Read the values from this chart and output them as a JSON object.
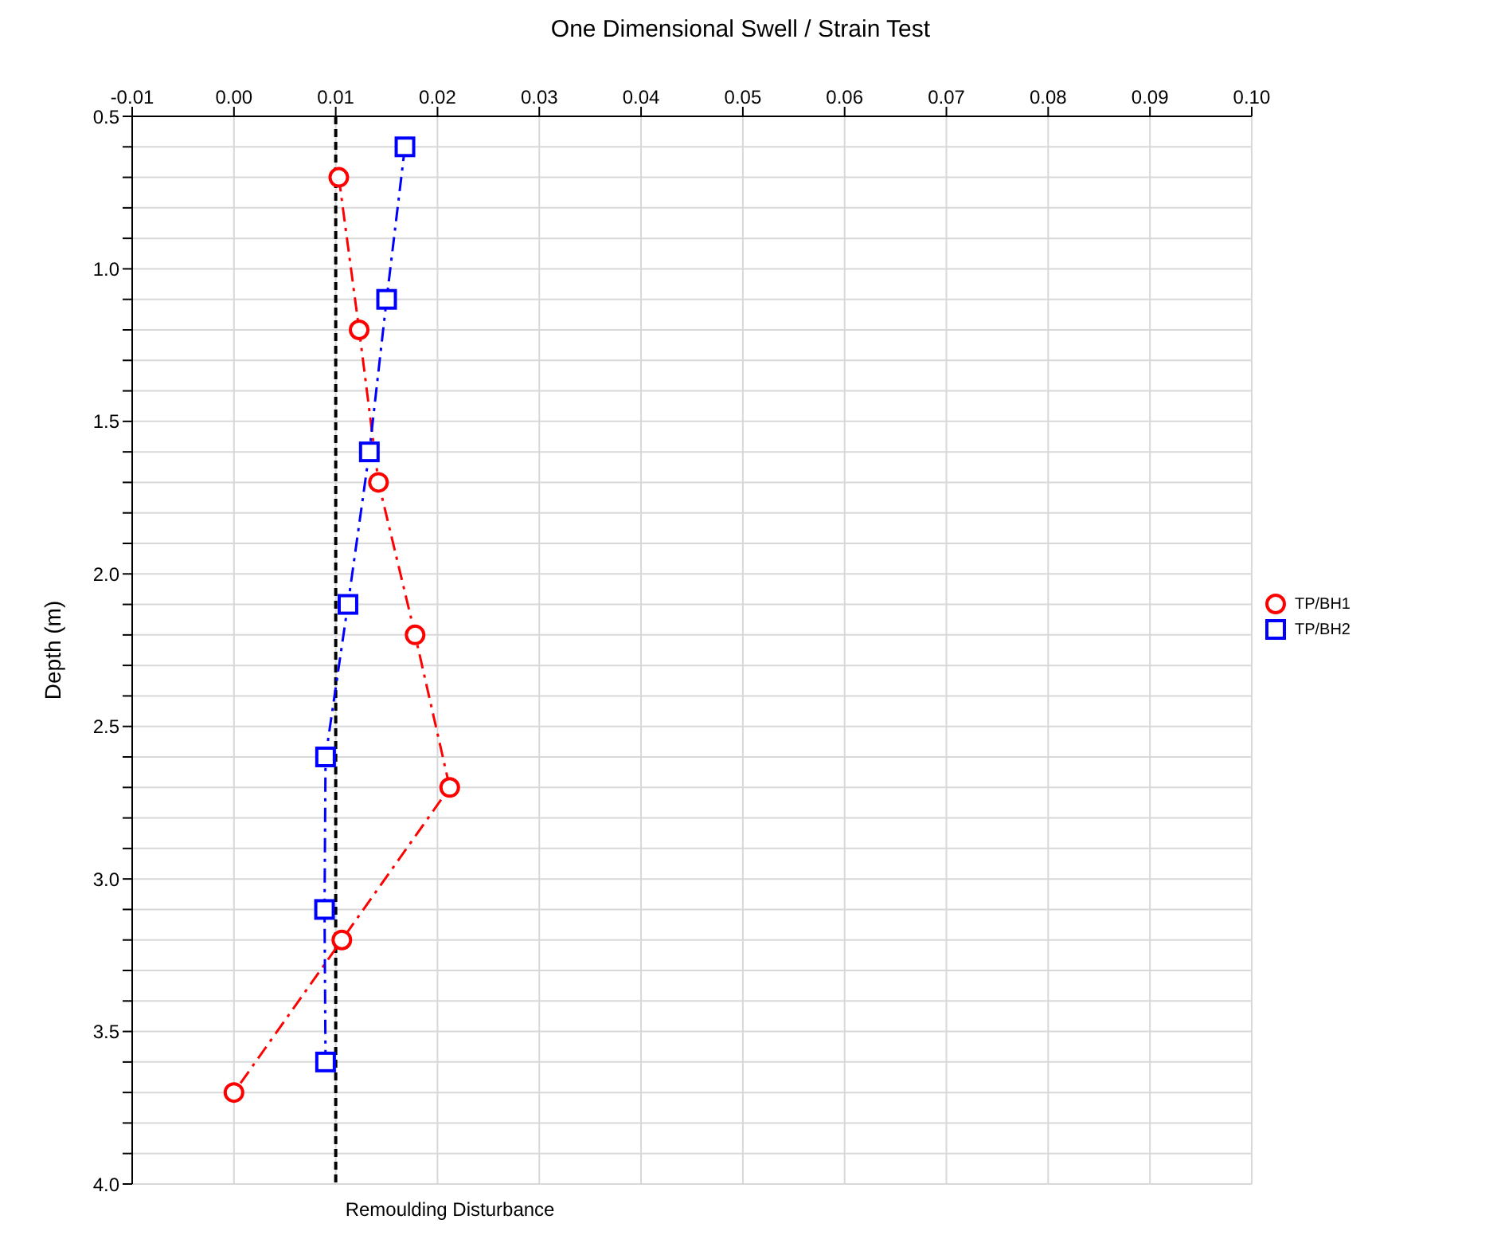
{
  "chart_data": {
    "type": "line",
    "title": "One Dimensional Swell / Strain Test",
    "ylabel": "Depth (m)",
    "xlim": [
      -0.01,
      0.1
    ],
    "xticks": [
      -0.01,
      "0.00",
      0.01,
      0.02,
      0.03,
      0.04,
      0.05,
      0.06,
      0.07,
      0.08,
      0.09,
      "0.10"
    ],
    "ylim": [
      4.0,
      0.5
    ],
    "yticks": [
      {
        "value": 0.5,
        "label": "0.5"
      },
      {
        "value": 0.6,
        "label": null
      },
      {
        "value": 0.7,
        "label": null
      },
      {
        "value": 0.8,
        "label": null
      },
      {
        "value": 0.9,
        "label": null
      },
      {
        "value": 1,
        "label": "1.0"
      },
      {
        "value": 1.1,
        "label": null
      },
      {
        "value": 1.2,
        "label": null
      },
      {
        "value": 1.3,
        "label": null
      },
      {
        "value": 1.4,
        "label": null
      },
      {
        "value": 1.5,
        "label": "1.5"
      },
      {
        "value": 1.6,
        "label": null
      },
      {
        "value": 1.7,
        "label": null
      },
      {
        "value": 1.8,
        "label": null
      },
      {
        "value": 1.9,
        "label": null
      },
      {
        "value": 2,
        "label": "2.0"
      },
      {
        "value": 2.1,
        "label": null
      },
      {
        "value": 2.2,
        "label": null
      },
      {
        "value": 2.3,
        "label": null
      },
      {
        "value": 2.4,
        "label": null
      },
      {
        "value": 2.5,
        "label": "2.5"
      },
      {
        "value": 2.6,
        "label": null
      },
      {
        "value": 2.7,
        "label": null
      },
      {
        "value": 2.8,
        "label": null
      },
      {
        "value": 2.9,
        "label": null
      },
      {
        "value": 3,
        "label": "3.0"
      },
      {
        "value": 3.1,
        "label": null
      },
      {
        "value": 3.2,
        "label": null
      },
      {
        "value": 3.3,
        "label": null
      },
      {
        "value": 3.4,
        "label": null
      },
      {
        "value": 3.5,
        "label": "3.5"
      },
      {
        "value": 3.6,
        "label": null
      },
      {
        "value": 3.7,
        "label": null
      },
      {
        "value": 3.8,
        "label": null
      },
      {
        "value": 3.9,
        "label": null
      },
      {
        "value": 4,
        "label": "4.0"
      }
    ],
    "grid": true,
    "legend": "right",
    "line_style": "dashed",
    "series": [
      {
        "name": "TP/BH1",
        "color": "#ff0000",
        "marker": "circle",
        "x": [
          0.0103,
          0.0123,
          0.0142,
          0.0178,
          0.0212,
          0.0106,
          0.0
        ],
        "values": [
          0.7,
          1.2,
          1.7,
          2.2,
          2.7,
          3.2,
          3.7
        ]
      },
      {
        "name": "TP/BH2",
        "color": "#0000ff",
        "marker": "square",
        "x": [
          0.0168,
          0.015,
          0.0133,
          0.0112,
          0.009,
          0.0089,
          0.009
        ],
        "values": [
          0.6,
          1.1,
          1.6,
          2.1,
          2.6,
          3.1,
          3.6
        ]
      }
    ],
    "ref_lines": [
      {
        "axis": "x",
        "value": 0.01,
        "label": "Remoulding Disturbance",
        "color": "#000000",
        "line_style": "dashed"
      }
    ]
  }
}
